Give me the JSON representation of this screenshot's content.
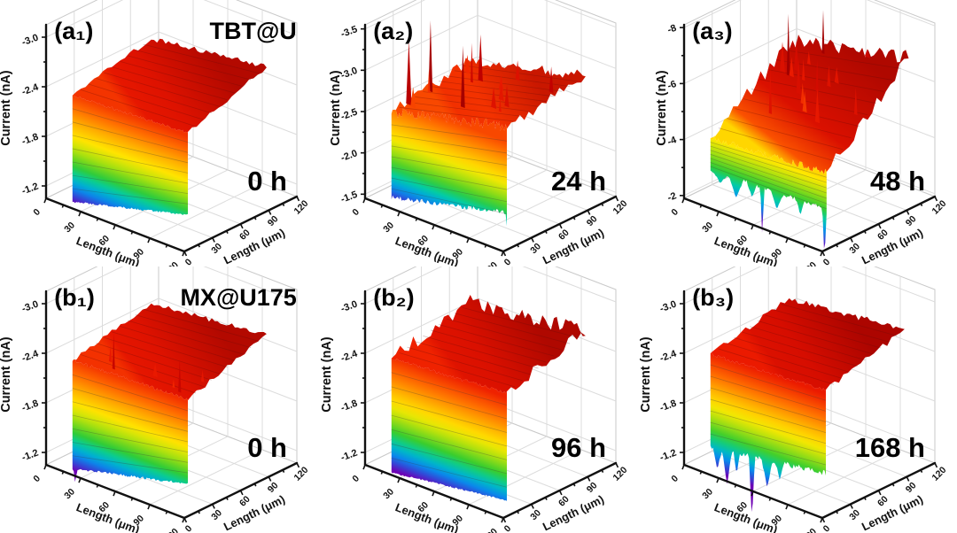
{
  "figure": {
    "xlabel": "Length (μm)",
    "ylabel": "Length (μm)",
    "zlabel": "Current (nA)",
    "xticks": [
      "0",
      "30",
      "60",
      "90",
      "120"
    ],
    "yticks": [
      "0",
      "30",
      "60",
      "90",
      "120"
    ],
    "colors": {
      "background": "#ffffff",
      "axis": "#111111",
      "grid": "#dcdcdc",
      "wall": "#ffffff",
      "wall_edge": "#c9c9c9",
      "mesh": "#3a3a3a",
      "rainbow": [
        {
          "t": 0.0,
          "c": "#8f0000"
        },
        {
          "t": 0.16,
          "c": "#c00000"
        },
        {
          "t": 0.32,
          "c": "#ee1c00"
        },
        {
          "t": 0.44,
          "c": "#ff6a00"
        },
        {
          "t": 0.54,
          "c": "#ffb400"
        },
        {
          "t": 0.62,
          "c": "#ffe800"
        },
        {
          "t": 0.7,
          "c": "#a6e010"
        },
        {
          "t": 0.78,
          "c": "#34cc30"
        },
        {
          "t": 0.84,
          "c": "#00ccaa"
        },
        {
          "t": 0.9,
          "c": "#0098f0"
        },
        {
          "t": 0.95,
          "c": "#2e4ed8"
        },
        {
          "t": 0.985,
          "c": "#5a12c8"
        },
        {
          "t": 1.0,
          "c": "#6e00b4"
        }
      ]
    }
  },
  "chart_data": [
    {
      "type": "surface",
      "panel_label": "(a₁)",
      "sample_label": "TBT@U",
      "time_label": "0 h",
      "xlabel": "Length (μm)",
      "ylabel": "Length (μm)",
      "zlabel": "Current (nA)",
      "x_range_um": [
        0,
        120
      ],
      "y_range_um": [
        0,
        120
      ],
      "ztick_labels": [
        "-3.0",
        "-2.4",
        "-1.8",
        "-1.2"
      ],
      "ztick_values": [
        -3.0,
        -2.4,
        -1.8,
        -1.2
      ],
      "zlim": {
        "bottom": -1.05,
        "top": -3.15
      },
      "summary": {
        "plateau_nA": -2.5,
        "front_edge_min_nA": -1.1,
        "extreme_nA": -2.78
      },
      "surface": {
        "u0": 0.15,
        "u1": 0.985,
        "v0": 0.05,
        "v1": 0.75,
        "z_front": [
          -2.36,
          -2.44
        ],
        "z_back": [
          -2.58,
          -2.78
        ],
        "z_bottom": [
          -1.07,
          -1.45
        ],
        "amp_front": 0.018,
        "amp_side": 0.03,
        "amp_bottom": 0.012,
        "spikes": {
          "count": 0,
          "zmax": 0,
          "vmin": 0,
          "vmax": 0
        },
        "dips": []
      }
    },
    {
      "type": "surface",
      "panel_label": "(a₂)",
      "sample_label": "",
      "time_label": "24 h",
      "xlabel": "Length (μm)",
      "ylabel": "Length (μm)",
      "zlabel": "Current (nA)",
      "x_range_um": [
        0,
        120
      ],
      "y_range_um": [
        0,
        120
      ],
      "ztick_labels": [
        "-3.5",
        "-3.0",
        "-2.5",
        "-2.0",
        "-1.5"
      ],
      "ztick_values": [
        -3.5,
        -3.0,
        -2.5,
        -2.0,
        -1.5
      ],
      "zlim": {
        "bottom": -1.45,
        "top": -3.55
      },
      "summary": {
        "plateau_nA": -3.0,
        "front_edge_min_nA": -1.5,
        "extreme_nA": -3.5
      },
      "surface": {
        "u0": 0.15,
        "u1": 0.985,
        "v0": 0.05,
        "v1": 0.75,
        "z_front": [
          -2.55,
          -2.92
        ],
        "z_back": [
          -2.72,
          -3.06
        ],
        "z_bottom": [
          -1.52,
          -1.88
        ],
        "amp_front": 0.07,
        "amp_side": 0.07,
        "amp_bottom": 0.03,
        "spikes": {
          "count": 15,
          "zmax": -3.5,
          "vmin": 0.06,
          "vmax": 0.9
        },
        "dips": [
          {
            "u": 0.995,
            "z": -1.47,
            "w": 0.016
          }
        ]
      }
    },
    {
      "type": "surface",
      "panel_label": "(a₃)",
      "sample_label": "",
      "time_label": "48 h",
      "xlabel": "Length (μm)",
      "ylabel": "Length (μm)",
      "zlabel": "Current (nA)",
      "x_range_um": [
        0,
        120
      ],
      "y_range_um": [
        0,
        120
      ],
      "ztick_labels": [
        "-8",
        "-6",
        "-4",
        "-2"
      ],
      "ztick_values": [
        -8,
        -6,
        -4,
        -2
      ],
      "zlim": {
        "bottom": -1.9,
        "top": -8.1
      },
      "summary": {
        "plateau_nA": -6.5,
        "front_edge_min_nA": -2.0,
        "extreme_nA": -8.0
      },
      "surface": {
        "u0": 0.15,
        "u1": 0.99,
        "v0": 0.05,
        "v1": 0.78,
        "z_front": [
          -4.25,
          -4.6
        ],
        "z_back": [
          -6.3,
          -7.3
        ],
        "z_bottom": [
          -3.1,
          -3.3
        ],
        "amp_front": 0.12,
        "amp_side": 0.25,
        "amp_bottom": 0.07,
        "spikes": {
          "count": 17,
          "zmax": -8.0,
          "vmin": 0.25,
          "vmax": 0.95
        },
        "dips": [
          {
            "u": 0.22,
            "z": -2.75,
            "w": 0.05
          },
          {
            "u": 0.335,
            "z": -2.45,
            "w": 0.05
          },
          {
            "u": 0.45,
            "z": -2.7,
            "w": 0.035
          },
          {
            "u": 0.525,
            "z": -1.35,
            "w": 0.014
          },
          {
            "u": 0.63,
            "z": -2.6,
            "w": 0.045
          },
          {
            "u": 0.8,
            "z": -2.7,
            "w": 0.03
          },
          {
            "u": 0.975,
            "z": -1.4,
            "w": 0.016
          }
        ]
      }
    },
    {
      "type": "surface",
      "panel_label": "(b₁)",
      "sample_label": "MX@U175",
      "time_label": "0 h",
      "xlabel": "Length (μm)",
      "ylabel": "Length (μm)",
      "zlabel": "Current (nA)",
      "x_range_um": [
        0,
        120
      ],
      "y_range_um": [
        0,
        120
      ],
      "ztick_labels": [
        "-3.0",
        "-2.4",
        "-1.8",
        "-1.2"
      ],
      "ztick_values": [
        -3.0,
        -2.4,
        -1.8,
        -1.2
      ],
      "zlim": {
        "bottom": -1.05,
        "top": -3.15
      },
      "summary": {
        "plateau_nA": -2.5,
        "front_edge_min_nA": -1.0,
        "extreme_nA": -2.85
      },
      "surface": {
        "u0": 0.15,
        "u1": 0.985,
        "v0": 0.05,
        "v1": 0.75,
        "z_front": [
          -2.38,
          -2.44
        ],
        "z_back": [
          -2.6,
          -2.76
        ],
        "z_bottom": [
          -1.07,
          -1.42
        ],
        "amp_front": 0.02,
        "amp_side": 0.03,
        "amp_bottom": 0.015,
        "spikes": {
          "count": 6,
          "zmax": -2.85,
          "vmin": 0.04,
          "vmax": 0.3
        },
        "dips": [
          {
            "u": 0.17,
            "z": -0.9,
            "w": 0.014
          }
        ]
      }
    },
    {
      "type": "surface",
      "panel_label": "(b₂)",
      "sample_label": "",
      "time_label": "96 h",
      "xlabel": "Length (μm)",
      "ylabel": "Length (μm)",
      "zlabel": "Current (nA)",
      "x_range_um": [
        0,
        120
      ],
      "y_range_um": [
        0,
        120
      ],
      "ztick_labels": [
        "-3.0",
        "-2.4",
        "-1.8",
        "-1.2"
      ],
      "ztick_values": [
        -3.0,
        -2.4,
        -1.8,
        -1.2
      ],
      "zlim": {
        "bottom": -1.05,
        "top": -3.15
      },
      "summary": {
        "plateau_nA": -2.6,
        "front_edge_min_nA": -1.0,
        "extreme_nA": -2.8
      },
      "surface": {
        "u0": 0.15,
        "u1": 0.985,
        "v0": 0.05,
        "v1": 0.75,
        "z_front": [
          -2.4,
          -2.52
        ],
        "z_back": [
          -2.62,
          -2.8
        ],
        "z_bottom": [
          -1.02,
          -1.22
        ],
        "amp_front": 0.02,
        "amp_side": 0.09,
        "amp_bottom": 0.01,
        "spikes": {
          "count": 0,
          "zmax": 0,
          "vmin": 0,
          "vmax": 0
        },
        "dips": []
      }
    },
    {
      "type": "surface",
      "panel_label": "(b₃)",
      "sample_label": "",
      "time_label": "168 h",
      "xlabel": "Length (μm)",
      "ylabel": "Length (μm)",
      "zlabel": "Current (nA)",
      "x_range_um": [
        0,
        120
      ],
      "y_range_um": [
        0,
        120
      ],
      "ztick_labels": [
        "-3.0",
        "-2.4",
        "-1.8",
        "-1.2"
      ],
      "ztick_values": [
        -3.0,
        -2.4,
        -1.8,
        -1.2
      ],
      "zlim": {
        "bottom": -1.05,
        "top": -3.15
      },
      "summary": {
        "plateau_nA": -2.65,
        "front_edge_min_nA": -0.9,
        "extreme_nA": -2.82
      },
      "surface": {
        "u0": 0.15,
        "u1": 0.985,
        "v0": 0.05,
        "v1": 0.75,
        "z_front": [
          -2.45,
          -2.55
        ],
        "z_back": [
          -2.66,
          -2.82
        ],
        "z_bottom": [
          -1.32,
          -1.55
        ],
        "amp_front": 0.02,
        "amp_side": 0.035,
        "amp_bottom": 0.035,
        "spikes": {
          "count": 0,
          "zmax": 0,
          "vmin": 0,
          "vmax": 0
        },
        "dips": [
          {
            "u": 0.2,
            "z": -1.08,
            "w": 0.03
          },
          {
            "u": 0.27,
            "z": -0.95,
            "w": 0.035
          },
          {
            "u": 0.34,
            "z": -1.1,
            "w": 0.02
          },
          {
            "u": 0.45,
            "z": -0.62,
            "w": 0.022
          },
          {
            "u": 0.56,
            "z": -1.1,
            "w": 0.04
          },
          {
            "u": 0.65,
            "z": -1.25,
            "w": 0.03
          }
        ]
      }
    }
  ]
}
